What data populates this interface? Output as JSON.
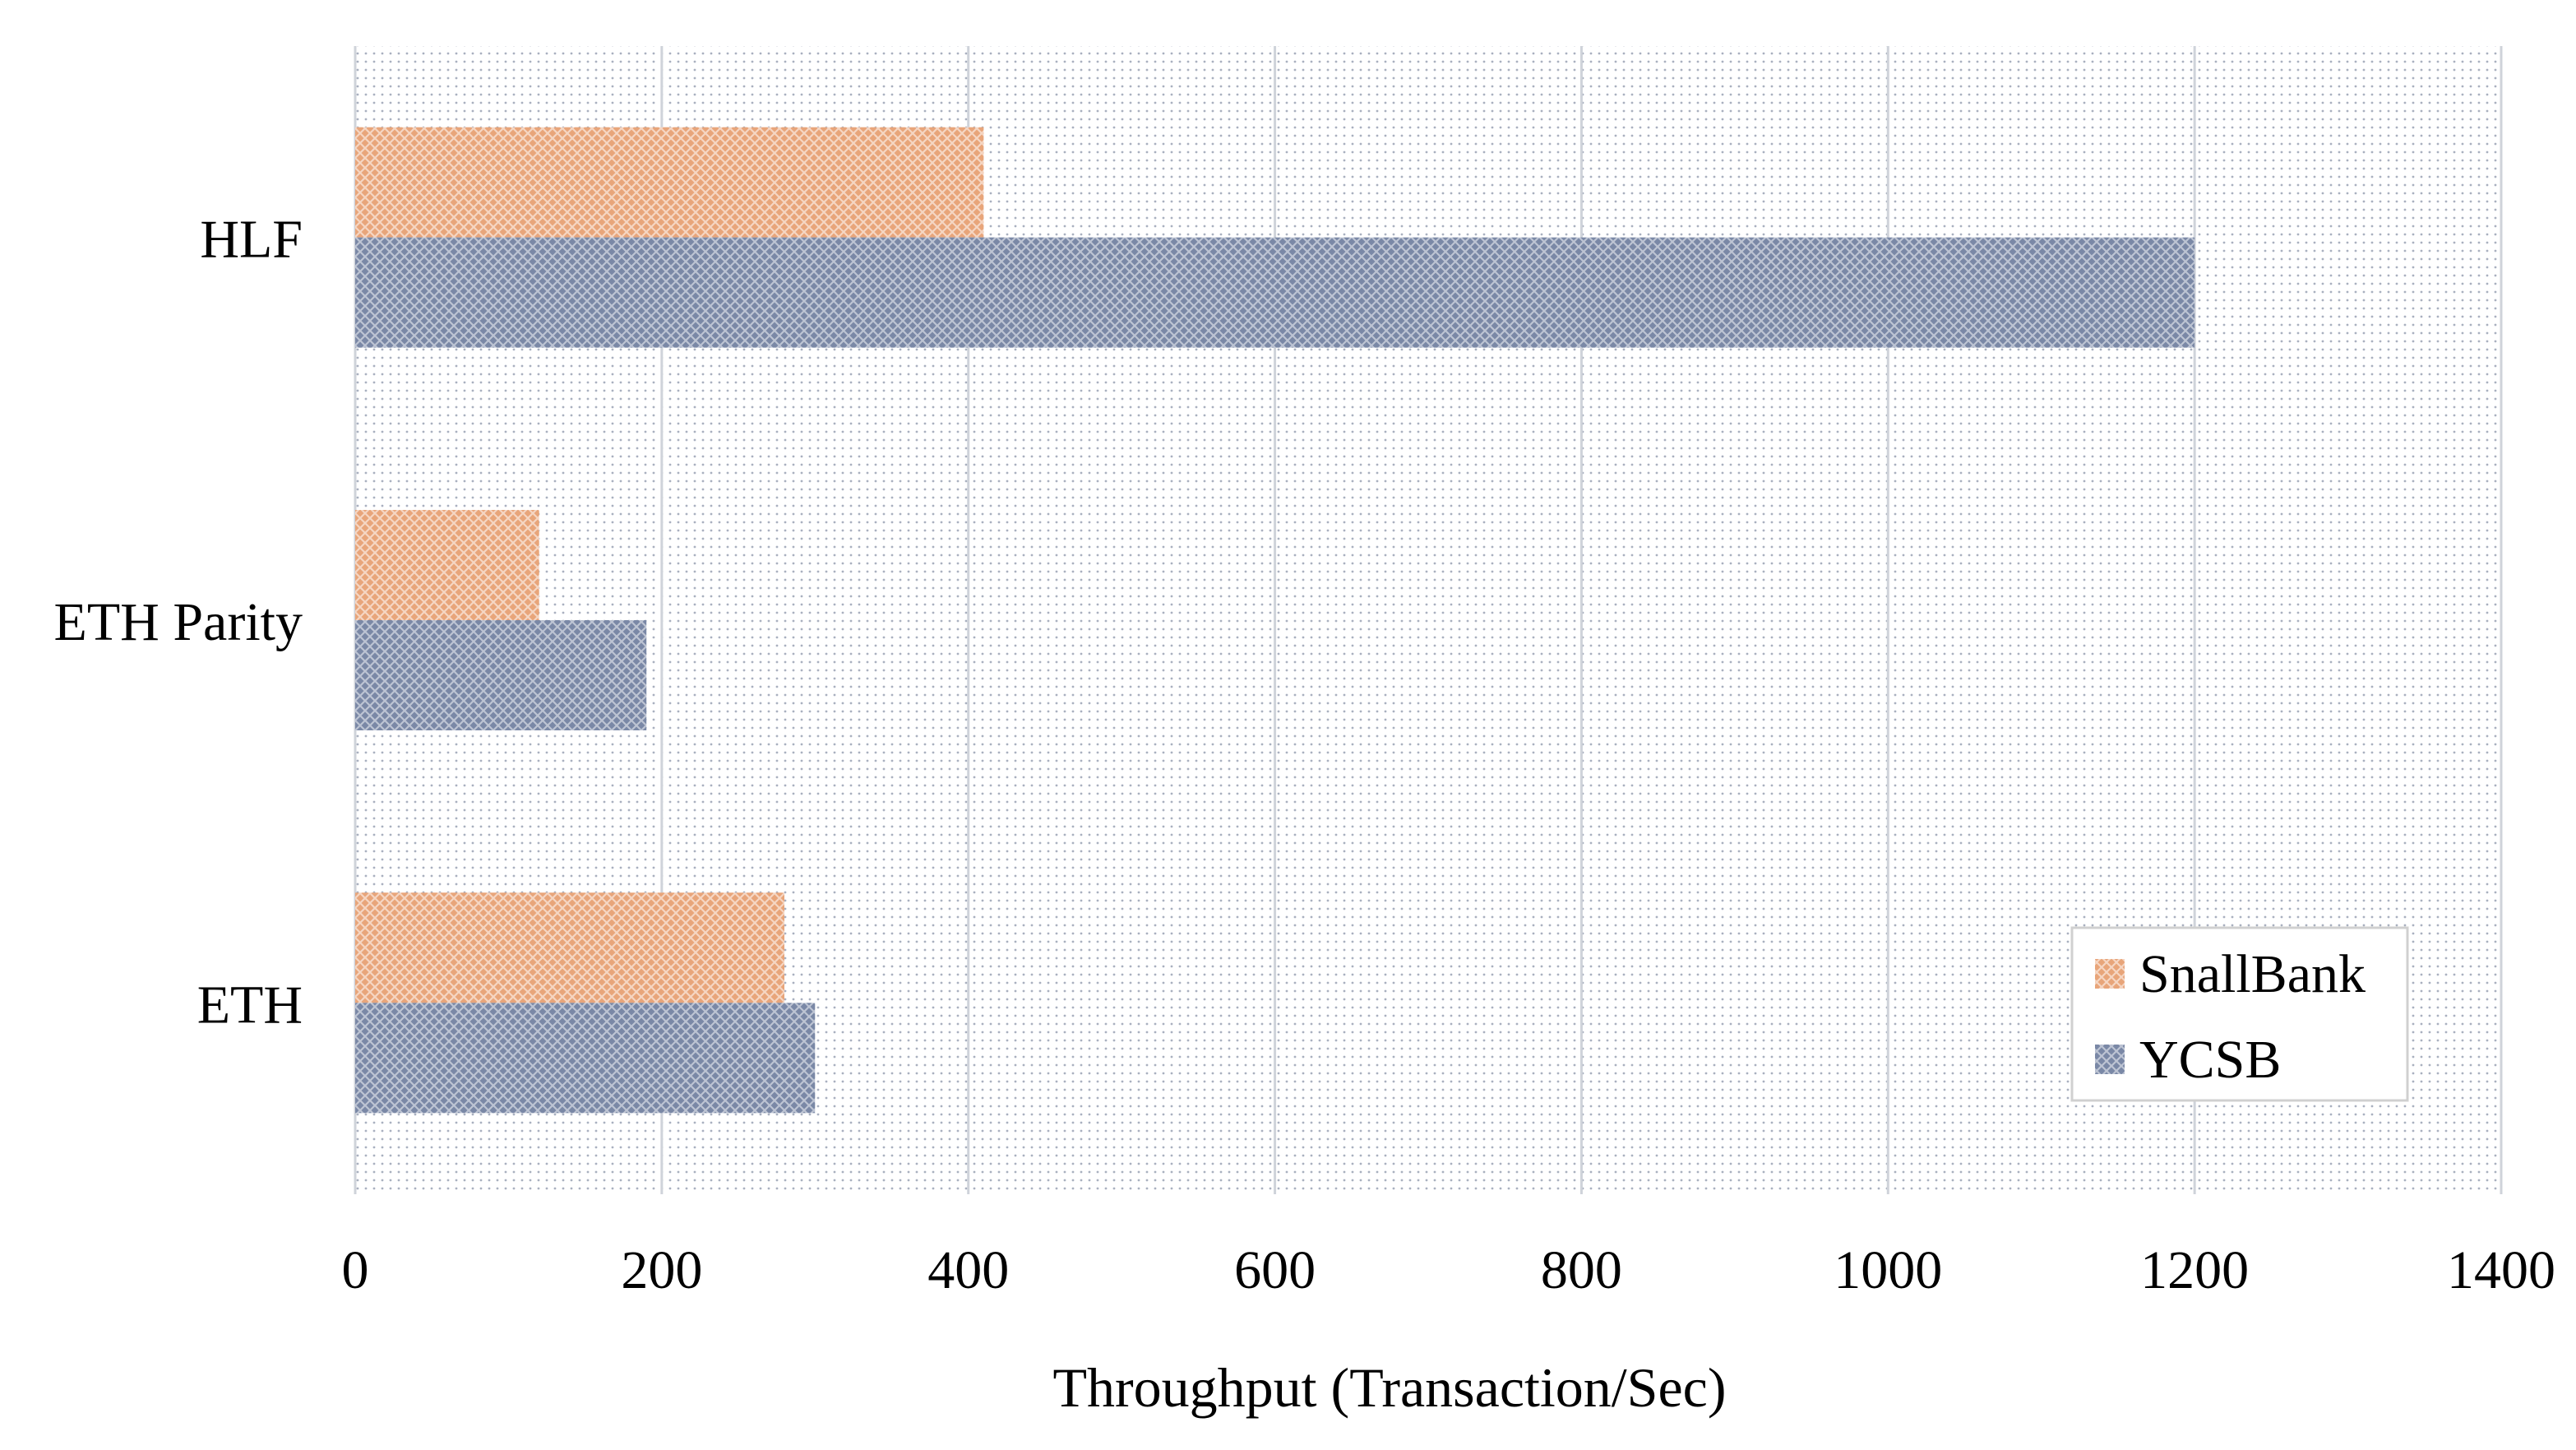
{
  "chart_data": {
    "type": "bar",
    "orientation": "horizontal",
    "categories": [
      "HLF",
      "ETH Parity",
      "ETH"
    ],
    "series": [
      {
        "name": "SnallBank",
        "values": [
          410,
          120,
          280
        ],
        "color": "#e8a57a"
      },
      {
        "name": "YCSB",
        "values": [
          1200,
          190,
          300
        ],
        "color": "#7a88a6"
      }
    ],
    "xlabel": "Throughput (Transaction/Sec)",
    "xlim": [
      0,
      1400
    ],
    "xticks": [
      0,
      200,
      400,
      600,
      800,
      1000,
      1200,
      1400
    ],
    "grid": true,
    "legend_position": "bottom-right",
    "plot_background": "dotted"
  }
}
